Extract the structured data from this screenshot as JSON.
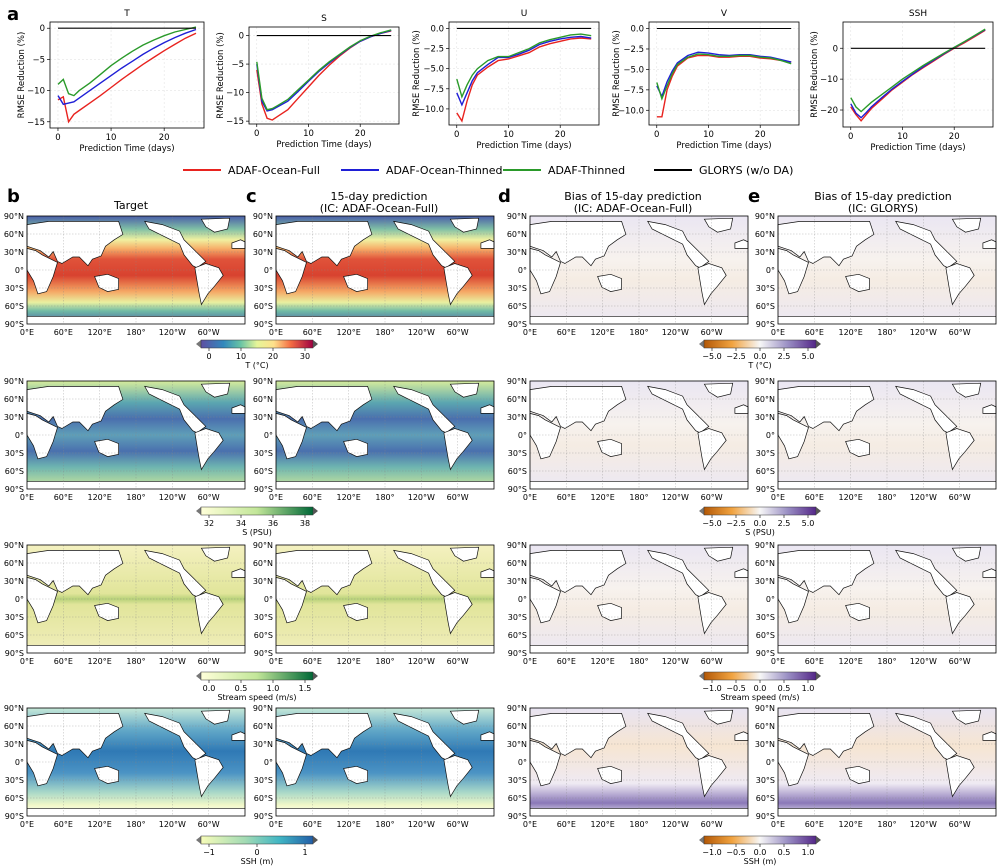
{
  "panel_letters": [
    "a",
    "b",
    "c",
    "d",
    "e"
  ],
  "colors": {
    "ADAF-Ocean-Full": "#e8231f",
    "ADAF-Ocean-Thinned": "#1f1fd6",
    "ADAF-Thinned": "#2a9a2a",
    "GLORYS (w/o DA)": "#000000"
  },
  "legend": [
    "ADAF-Ocean-Full",
    "ADAF-Ocean-Thinned",
    "ADAF-Thinned",
    "GLORYS (w/o DA)"
  ],
  "column_titles": {
    "b": "Target",
    "c1": "15-day prediction",
    "c2": "(IC: ADAF-Ocean-Full)",
    "d1": "Bias of 15-day prediction",
    "d2": "(IC: ADAF-Ocean-Full)",
    "e1": "Bias of 15-day prediction",
    "e2": "(IC: GLORYS)"
  },
  "map_ticks": {
    "lat": [
      "90°N",
      "60°N",
      "30°N",
      "0°",
      "30°S",
      "60°S",
      "90°S"
    ],
    "lon": [
      "0°E",
      "60°E",
      "120°E",
      "180°",
      "120°W",
      "60°W"
    ]
  },
  "colorbars": [
    {
      "label": "T (°C)",
      "ticks": [
        "0",
        "10",
        "20",
        "30"
      ],
      "bias_label": "T (°C)",
      "bias_ticks": [
        "−5.0",
        "−2.5",
        "0.0",
        "2.5",
        "5.0"
      ]
    },
    {
      "label": "S (PSU)",
      "ticks": [
        "32",
        "34",
        "36",
        "38"
      ],
      "bias_label": "S (PSU)",
      "bias_ticks": [
        "−5.0",
        "−2.5",
        "0.0",
        "2.5",
        "5.0"
      ]
    },
    {
      "label": "Stream speed (m/s)",
      "ticks": [
        "0.0",
        "0.5",
        "1.0",
        "1.5"
      ],
      "bias_label": "Stream speed (m/s)",
      "bias_ticks": [
        "−1.0",
        "−0.5",
        "0.0",
        "0.5",
        "1.0"
      ]
    },
    {
      "label": "SSH (m)",
      "ticks": [
        "−1",
        "0",
        "1"
      ],
      "bias_label": "SSH (m)",
      "bias_ticks": [
        "−1.0",
        "−0.5",
        "0.0",
        "0.5",
        "1.0"
      ]
    }
  ],
  "chart_data": [
    {
      "type": "line",
      "title": "T",
      "xlabel": "Prediction Time (days)",
      "ylabel": "RMSE Reduction (%)",
      "xlim": [
        -1.5,
        27.5
      ],
      "ylim": [
        -16,
        1
      ],
      "xticks": [
        0,
        10,
        20
      ],
      "yticks": [
        0,
        -5,
        -10,
        -15
      ],
      "x": [
        0,
        1,
        2,
        3,
        4,
        6,
        8,
        10,
        12,
        14,
        16,
        18,
        20,
        22,
        24,
        26
      ],
      "series": [
        {
          "name": "ADAF-Ocean-Full",
          "values": [
            -11.5,
            -11.0,
            -15.0,
            -13.8,
            -13.2,
            -12.0,
            -10.8,
            -9.5,
            -8.2,
            -7.0,
            -5.8,
            -4.7,
            -3.6,
            -2.6,
            -1.6,
            -0.8
          ]
        },
        {
          "name": "ADAF-Ocean-Thinned",
          "values": [
            -10.8,
            -12.2,
            -12.0,
            -11.8,
            -11.2,
            -10.0,
            -8.8,
            -7.6,
            -6.4,
            -5.3,
            -4.2,
            -3.2,
            -2.3,
            -1.5,
            -0.8,
            -0.2
          ]
        },
        {
          "name": "ADAF-Thinned",
          "values": [
            -9.0,
            -8.2,
            -10.5,
            -10.8,
            -10.0,
            -8.8,
            -7.4,
            -6.0,
            -4.8,
            -3.7,
            -2.7,
            -1.9,
            -1.2,
            -0.6,
            -0.2,
            0.2
          ]
        },
        {
          "name": "GLORYS (w/o DA)",
          "values": [
            0,
            0,
            0,
            0,
            0,
            0,
            0,
            0,
            0,
            0,
            0,
            0,
            0,
            0,
            0,
            0
          ]
        }
      ]
    },
    {
      "type": "line",
      "title": "S",
      "xlabel": "Prediction Time (days)",
      "ylabel": "RMSE Reduction (%)",
      "xlim": [
        -1.5,
        27.5
      ],
      "ylim": [
        -15.5,
        1.5
      ],
      "xticks": [
        0,
        10,
        20
      ],
      "yticks": [
        0,
        -5,
        -10,
        -15
      ],
      "x": [
        0,
        1,
        2,
        3,
        4,
        6,
        8,
        10,
        12,
        14,
        16,
        18,
        20,
        22,
        24,
        26
      ],
      "series": [
        {
          "name": "ADAF-Ocean-Full",
          "values": [
            -6.0,
            -12.0,
            -14.5,
            -14.8,
            -14.2,
            -13.0,
            -11.0,
            -9.0,
            -7.0,
            -5.2,
            -3.6,
            -2.2,
            -1.0,
            -0.2,
            0.4,
            0.8
          ]
        },
        {
          "name": "ADAF-Ocean-Thinned",
          "values": [
            -5.0,
            -11.5,
            -13.2,
            -13.0,
            -12.5,
            -11.5,
            -9.8,
            -8.0,
            -6.3,
            -4.8,
            -3.4,
            -2.1,
            -1.0,
            -0.2,
            0.4,
            0.9
          ]
        },
        {
          "name": "ADAF-Thinned",
          "values": [
            -4.6,
            -11.0,
            -13.0,
            -12.8,
            -12.3,
            -11.2,
            -9.5,
            -7.8,
            -6.1,
            -4.6,
            -3.3,
            -2.0,
            -0.9,
            -0.1,
            0.5,
            1.0
          ]
        },
        {
          "name": "GLORYS (w/o DA)",
          "values": [
            0,
            0,
            0,
            0,
            0,
            0,
            0,
            0,
            0,
            0,
            0,
            0,
            0,
            0,
            0,
            0
          ]
        }
      ]
    },
    {
      "type": "line",
      "title": "U",
      "xlabel": "Prediction Time (days)",
      "ylabel": "RMSE Reduction (%)",
      "xlim": [
        -1.5,
        27.5
      ],
      "ylim": [
        -12,
        0.8
      ],
      "xticks": [
        0,
        10,
        20
      ],
      "yticks": [
        0.0,
        -2.5,
        -5.0,
        -7.5,
        -10.0
      ],
      "x": [
        0,
        1,
        2,
        3,
        4,
        6,
        8,
        10,
        12,
        14,
        16,
        18,
        20,
        22,
        24,
        26
      ],
      "series": [
        {
          "name": "ADAF-Ocean-Full",
          "values": [
            -10.5,
            -11.5,
            -9.0,
            -7.0,
            -5.8,
            -4.8,
            -4.0,
            -3.8,
            -3.4,
            -3.0,
            -2.3,
            -1.9,
            -1.6,
            -1.3,
            -1.2,
            -1.3
          ]
        },
        {
          "name": "ADAF-Ocean-Thinned",
          "values": [
            -8.0,
            -9.5,
            -8.0,
            -6.5,
            -5.5,
            -4.5,
            -3.6,
            -3.6,
            -3.2,
            -2.7,
            -2.0,
            -1.6,
            -1.3,
            -1.1,
            -1.0,
            -1.2
          ]
        },
        {
          "name": "ADAF-Thinned",
          "values": [
            -6.3,
            -8.5,
            -7.0,
            -5.8,
            -5.0,
            -4.0,
            -3.5,
            -3.5,
            -3.0,
            -2.5,
            -1.8,
            -1.4,
            -1.1,
            -0.8,
            -0.7,
            -0.9
          ]
        },
        {
          "name": "GLORYS (w/o DA)",
          "values": [
            0,
            0,
            0,
            0,
            0,
            0,
            0,
            0,
            0,
            0,
            0,
            0,
            0,
            0,
            0,
            0
          ]
        }
      ]
    },
    {
      "type": "line",
      "title": "V",
      "xlabel": "Prediction Time (days)",
      "ylabel": "RMSE Reduction (%)",
      "xlim": [
        -1.5,
        27.5
      ],
      "ylim": [
        -11.8,
        0.8
      ],
      "xticks": [
        0,
        10,
        20
      ],
      "yticks": [
        0.0,
        -2.5,
        -5.0,
        -7.5,
        -10.0
      ],
      "x": [
        0,
        1,
        2,
        3,
        4,
        6,
        8,
        10,
        12,
        14,
        16,
        18,
        20,
        22,
        24,
        26
      ],
      "series": [
        {
          "name": "ADAF-Ocean-Full",
          "values": [
            -10.8,
            -10.8,
            -7.5,
            -5.8,
            -4.6,
            -3.6,
            -3.3,
            -3.3,
            -3.5,
            -3.5,
            -3.4,
            -3.4,
            -3.6,
            -3.7,
            -3.9,
            -4.1
          ]
        },
        {
          "name": "ADAF-Ocean-Thinned",
          "values": [
            -7.0,
            -8.3,
            -6.5,
            -5.2,
            -4.2,
            -3.3,
            -2.9,
            -3.0,
            -3.2,
            -3.3,
            -3.2,
            -3.2,
            -3.4,
            -3.5,
            -3.8,
            -4.1
          ]
        },
        {
          "name": "ADAF-Thinned",
          "values": [
            -6.6,
            -8.6,
            -7.0,
            -5.5,
            -4.4,
            -3.5,
            -3.1,
            -3.2,
            -3.4,
            -3.4,
            -3.3,
            -3.3,
            -3.5,
            -3.6,
            -3.9,
            -4.3
          ]
        },
        {
          "name": "GLORYS (w/o DA)",
          "values": [
            0,
            0,
            0,
            0,
            0,
            0,
            0,
            0,
            0,
            0,
            0,
            0,
            0,
            0,
            0,
            0
          ]
        }
      ]
    },
    {
      "type": "line",
      "title": "SSH",
      "xlabel": "Prediction Time (days)",
      "ylabel": "RMSE Reduction (%)",
      "xlim": [
        -1.5,
        27.5
      ],
      "ylim": [
        -25.5,
        8.5
      ],
      "xticks": [
        0,
        10,
        20
      ],
      "yticks": [
        0,
        -10,
        -20
      ],
      "x": [
        0,
        1,
        2,
        3,
        4,
        6,
        8,
        10,
        12,
        14,
        16,
        18,
        20,
        22,
        24,
        26
      ],
      "series": [
        {
          "name": "ADAF-Ocean-Full",
          "values": [
            -19.0,
            -21.5,
            -23.5,
            -21.5,
            -19.5,
            -16.5,
            -13.5,
            -11.0,
            -8.5,
            -6.3,
            -4.2,
            -2.0,
            0.0,
            1.8,
            3.8,
            5.8
          ]
        },
        {
          "name": "ADAF-Ocean-Thinned",
          "values": [
            -18.0,
            -21.0,
            -22.5,
            -20.8,
            -19.0,
            -16.0,
            -13.2,
            -10.7,
            -8.3,
            -6.0,
            -3.9,
            -1.8,
            0.2,
            2.1,
            4.1,
            6.0
          ]
        },
        {
          "name": "ADAF-Thinned",
          "values": [
            -16.0,
            -19.0,
            -20.5,
            -19.0,
            -17.5,
            -15.0,
            -12.5,
            -10.0,
            -7.8,
            -5.6,
            -3.6,
            -1.6,
            0.3,
            2.2,
            4.2,
            6.2
          ]
        },
        {
          "name": "GLORYS (w/o DA)",
          "values": [
            0,
            0,
            0,
            0,
            0,
            0,
            0,
            0,
            0,
            0,
            0,
            0,
            0,
            0,
            0,
            0
          ]
        }
      ]
    }
  ]
}
